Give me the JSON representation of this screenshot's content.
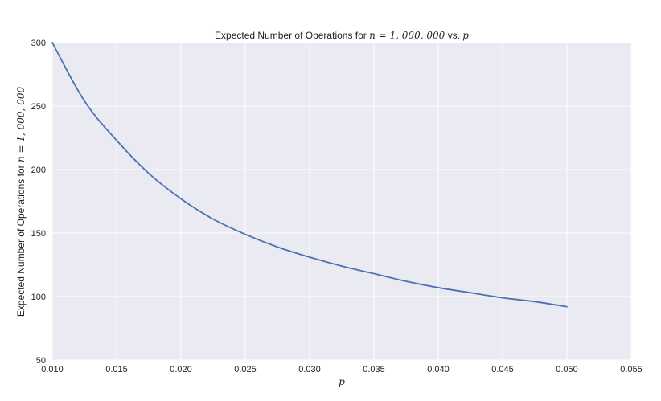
{
  "chart_data": {
    "type": "line",
    "title": {
      "prefix": "Expected Number of Operations for ",
      "math": "n = 1, 000, 000",
      "middle": " vs. ",
      "var": "p"
    },
    "xlabel": "p",
    "ylabel": {
      "prefix": "Expected Number of Operations for ",
      "math": "n = 1, 000, 000"
    },
    "xlim": [
      0.01,
      0.055
    ],
    "ylim": [
      50,
      300
    ],
    "xticks": [
      "0.010",
      "0.015",
      "0.020",
      "0.025",
      "0.030",
      "0.035",
      "0.040",
      "0.045",
      "0.050",
      "0.055"
    ],
    "yticks": [
      "50",
      "100",
      "150",
      "200",
      "250",
      "300"
    ],
    "grid": true,
    "background": "#EAEAF2",
    "series": [
      {
        "color": "#4C72B0",
        "x": [
          0.01,
          0.0125,
          0.015,
          0.0175,
          0.02,
          0.0225,
          0.025,
          0.0275,
          0.03,
          0.0325,
          0.035,
          0.0375,
          0.04,
          0.0425,
          0.045,
          0.0475,
          0.05
        ],
        "y": [
          300,
          254,
          223,
          197,
          177,
          161,
          149,
          139,
          131,
          124,
          118,
          112,
          107,
          103,
          99,
          96,
          92
        ]
      }
    ]
  }
}
